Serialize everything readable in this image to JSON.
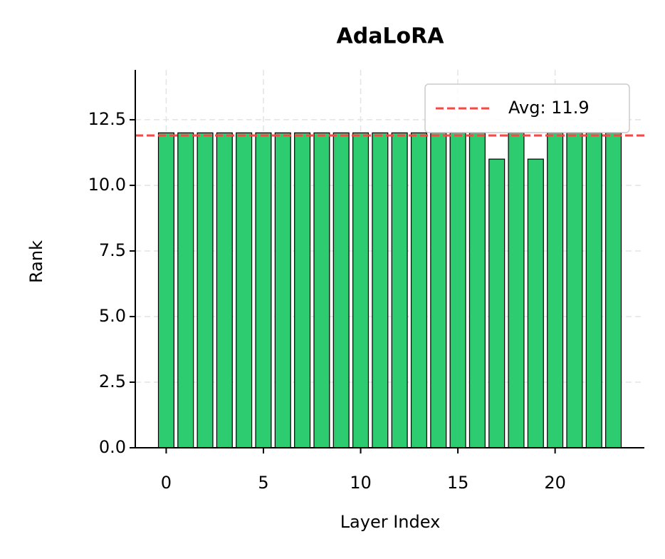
{
  "chart_data": {
    "type": "bar",
    "title": "AdaLoRA",
    "x_label": "Layer Index",
    "y_label": "Rank",
    "x": [
      0,
      1,
      2,
      3,
      4,
      5,
      6,
      7,
      8,
      9,
      10,
      11,
      12,
      13,
      14,
      15,
      16,
      17,
      18,
      19,
      20,
      21,
      22,
      23
    ],
    "values": [
      12,
      12,
      12,
      12,
      12,
      12,
      12,
      12,
      12,
      12,
      12,
      12,
      12,
      12,
      12,
      12,
      12,
      11,
      12,
      11,
      12,
      12,
      12,
      12
    ],
    "color": "#2ecc71",
    "edge_color": "#000000",
    "xlim": [
      -1.59,
      24.59
    ],
    "xticks": [
      0,
      5,
      10,
      15,
      20
    ],
    "ylim": [
      0,
      14.4
    ],
    "yticks": [
      {
        "value": 0,
        "label": "0.0"
      },
      2.5,
      {
        "value": 5,
        "label": "5.0"
      },
      7.5,
      {
        "value": 10,
        "label": "10.0"
      },
      12.5
    ],
    "grid": true,
    "legend_position": "upper right",
    "avg_line": {
      "value": 11.9,
      "label": "Avg: 11.9",
      "color": "#ff4444"
    }
  }
}
